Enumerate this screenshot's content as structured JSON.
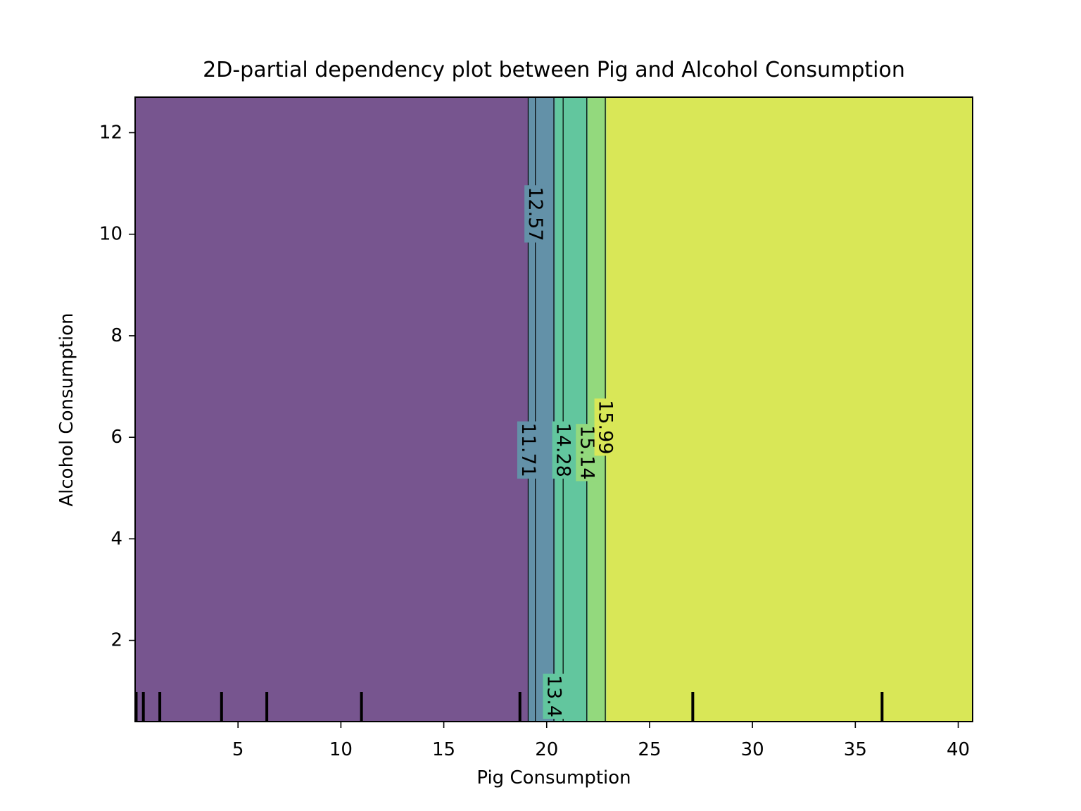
{
  "chart_data": {
    "type": "contour",
    "title": "2D-partial dependency plot between Pig and Alcohol Consumption",
    "xlabel": "Pig Consumption",
    "ylabel": "Alcohol Consumption",
    "xlim": [
      0,
      40.7
    ],
    "ylim": [
      0.4,
      12.7
    ],
    "x_ticks": [
      5,
      10,
      15,
      20,
      25,
      30,
      35,
      40
    ],
    "y_ticks": [
      2,
      4,
      6,
      8,
      10,
      12
    ],
    "colormap": "viridis",
    "levels": [
      {
        "label": "",
        "x_start": 0.0,
        "x_end": 19.1,
        "color": "#77558f"
      },
      {
        "label": "11.71",
        "x_start": 19.1,
        "x_end": 20.4,
        "color": "#6391a8"
      },
      {
        "label": "12.57",
        "x_start": 19.5,
        "x_end": 20.4,
        "color": "#6391a8"
      },
      {
        "label": "13.4",
        "x_start": 20.4,
        "x_end": 22.0,
        "color": "#62c69e"
      },
      {
        "label": "14.28",
        "x_start": 20.8,
        "x_end": 22.0,
        "color": "#62c69e"
      },
      {
        "label": "15.14",
        "x_start": 22.0,
        "x_end": 22.9,
        "color": "#93d97d"
      },
      {
        "label": "15.99",
        "x_start": 22.9,
        "x_end": 40.7,
        "color": "#d9e757"
      }
    ],
    "contour_lines": [
      {
        "label": "11.71",
        "x": 19.1,
        "label_y": 5.75
      },
      {
        "label": "12.57",
        "x": 19.45,
        "label_y": 10.4
      },
      {
        "label": "13.4",
        "x": 20.35,
        "label_y": 0.9
      },
      {
        "label": "14.28",
        "x": 20.8,
        "label_y": 5.75
      },
      {
        "label": "15.14",
        "x": 21.95,
        "label_y": 5.7
      },
      {
        "label": "15.99",
        "x": 22.85,
        "label_y": 6.2
      }
    ],
    "rug_x": [
      0.05,
      0.4,
      1.2,
      4.2,
      6.4,
      11.0,
      18.7,
      27.1,
      36.3
    ]
  }
}
